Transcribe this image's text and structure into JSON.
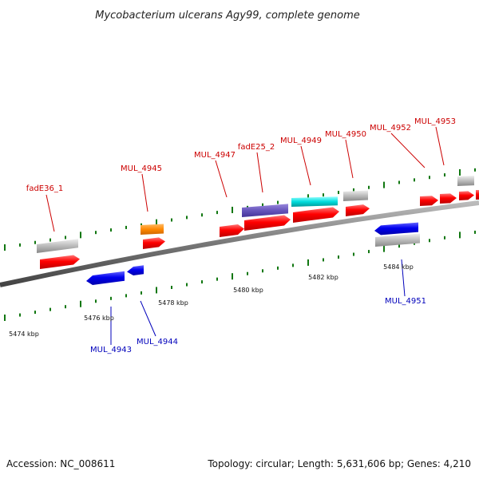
{
  "title": "Mycobacterium ulcerans Agy99, complete genome",
  "footer": {
    "accession": "Accession: NC_008611",
    "topology": "Topology: circular; Length: 5,631,606 bp; Genes: 4,210"
  },
  "axis": {
    "kbp_labels": [
      {
        "value": 5474,
        "text": "5474 kbp"
      },
      {
        "value": 5476,
        "text": "5476 kbp"
      },
      {
        "value": 5478,
        "text": "5478 kbp"
      },
      {
        "value": 5480,
        "text": "5480 kbp"
      },
      {
        "value": 5482,
        "text": "5482 kbp"
      },
      {
        "value": 5484,
        "text": "5484 kbp"
      }
    ]
  },
  "genes": [
    {
      "name": "fadE36_1",
      "strand": "forward"
    },
    {
      "name": "MUL_4945",
      "strand": "forward"
    },
    {
      "name": "MUL_4947",
      "strand": "forward"
    },
    {
      "name": "fadE25_2",
      "strand": "forward"
    },
    {
      "name": "MUL_4949",
      "strand": "forward"
    },
    {
      "name": "MUL_4950",
      "strand": "forward"
    },
    {
      "name": "MUL_4952",
      "strand": "forward"
    },
    {
      "name": "MUL_4953",
      "strand": "forward"
    },
    {
      "name": "MUL_4943",
      "strand": "reverse"
    },
    {
      "name": "MUL_4944",
      "strand": "reverse"
    },
    {
      "name": "MUL_4951",
      "strand": "reverse"
    }
  ],
  "colors": {
    "cds": "#ff0000",
    "reverse_cds": "#0000ee",
    "gene": "#bbbbbb",
    "orange_feature": "#ff8800",
    "purple_feature": "#6655bb",
    "cyan_feature": "#00dddd",
    "forward_label": "#cc0000",
    "reverse_label": "#0000bb",
    "tick": "#117711",
    "backbone": "#777777"
  }
}
